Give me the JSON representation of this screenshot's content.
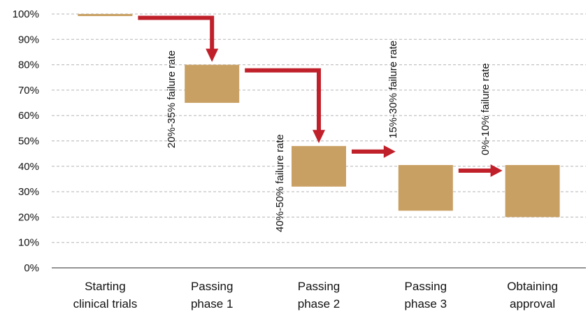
{
  "chart_data": {
    "type": "bar",
    "subtype": "floating-range",
    "title": "",
    "xlabel": "",
    "ylabel": "",
    "ylim": [
      0,
      100
    ],
    "y_ticks": [
      "0%",
      "10%",
      "20%",
      "30%",
      "40%",
      "50%",
      "60%",
      "70%",
      "80%",
      "90%",
      "100%"
    ],
    "y_tick_values": [
      0,
      10,
      20,
      30,
      40,
      50,
      60,
      70,
      80,
      90,
      100
    ],
    "grid": true,
    "legend": "none",
    "categories": [
      [
        "Starting",
        "clinical trials"
      ],
      [
        "Passing",
        "phase 1"
      ],
      [
        "Passing",
        "phase 2"
      ],
      [
        "Passing",
        "phase 3"
      ],
      [
        "Obtaining",
        "approval"
      ]
    ],
    "ranges": [
      {
        "low": 99.5,
        "high": 100
      },
      {
        "low": 65,
        "high": 80
      },
      {
        "low": 32,
        "high": 48
      },
      {
        "low": 22.5,
        "high": 40.5
      },
      {
        "low": 20,
        "high": 40.5
      }
    ],
    "annotations": [
      {
        "text": "20%-35% failure rate",
        "between": [
          0,
          1
        ]
      },
      {
        "text": "40%-50% failure rate",
        "between": [
          1,
          2
        ]
      },
      {
        "text": "15%-30% failure rate",
        "between": [
          2,
          3
        ]
      },
      {
        "text": "0%-10% failure rate",
        "between": [
          3,
          4
        ]
      }
    ],
    "colors": {
      "bar": "#c9a064",
      "arrow": "#c0202a"
    }
  }
}
